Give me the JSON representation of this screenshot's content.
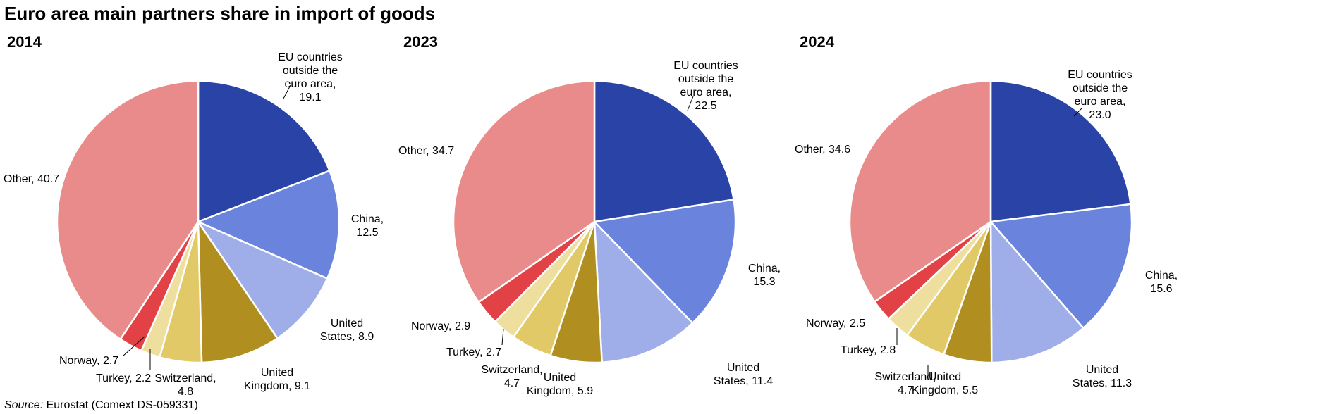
{
  "title": "Euro area main partners share in import of goods",
  "source": {
    "label": "Source:",
    "text": "Eurostat (Comext DS-059331)"
  },
  "colors": {
    "EU countries outside the euro area": "#2a43a6",
    "China": "#6a84de",
    "United States": "#9faee8",
    "United Kingdom": "#b08f20",
    "Switzerland": "#e0c966",
    "Turkey": "#efdf9e",
    "Norway": "#e24246",
    "Other": "#ea8b8b"
  },
  "chart_data": [
    {
      "type": "pie",
      "title": "2014",
      "categories": [
        "EU countries outside the euro area",
        "China",
        "United States",
        "United Kingdom",
        "Switzerland",
        "Turkey",
        "Norway",
        "Other"
      ],
      "values": [
        19.1,
        12.5,
        8.9,
        9.1,
        4.8,
        2.2,
        2.7,
        40.7
      ],
      "labels": [
        [
          "EU countries",
          "outside the",
          "euro area,",
          "19.1"
        ],
        [
          "China,",
          "12.5"
        ],
        [
          "United",
          "States, 8.9"
        ],
        [
          "United",
          "Kingdom, 9.1"
        ],
        [
          "Switzerland,",
          "4.8"
        ],
        [
          "Turkey, 2.2"
        ],
        [
          "Norway, 2.7"
        ],
        [
          "Other, 40.7"
        ]
      ]
    },
    {
      "type": "pie",
      "title": "2023",
      "categories": [
        "EU countries outside the euro area",
        "China",
        "United States",
        "United Kingdom",
        "Switzerland",
        "Turkey",
        "Norway",
        "Other"
      ],
      "values": [
        22.5,
        15.3,
        11.4,
        5.9,
        4.7,
        2.7,
        2.9,
        34.7
      ],
      "labels": [
        [
          "EU countries",
          "outside the",
          "euro area,",
          "22.5"
        ],
        [
          "China,",
          "15.3"
        ],
        [
          "United",
          "States, 11.4"
        ],
        [
          "United",
          "Kingdom, 5.9"
        ],
        [
          "Switzerland,",
          "4.7"
        ],
        [
          "Turkey, 2.7"
        ],
        [
          "Norway, 2.9"
        ],
        [
          "Other, 34.7"
        ]
      ]
    },
    {
      "type": "pie",
      "title": "2024",
      "categories": [
        "EU countries outside the euro area",
        "China",
        "United States",
        "United Kingdom",
        "Switzerland",
        "Turkey",
        "Norway",
        "Other"
      ],
      "values": [
        23.0,
        15.6,
        11.3,
        5.5,
        4.7,
        2.8,
        2.5,
        34.6
      ],
      "labels": [
        [
          "EU countries",
          "outside the",
          "euro area,",
          "23.0"
        ],
        [
          "China,",
          "15.6"
        ],
        [
          "United",
          "States, 11.3"
        ],
        [
          "United",
          "Kingdom, 5.5"
        ],
        [
          "Switzerland,",
          "4.7"
        ],
        [
          "Turkey, 2.8"
        ],
        [
          "Norway, 2.5"
        ],
        [
          "Other, 34.6"
        ]
      ]
    }
  ]
}
